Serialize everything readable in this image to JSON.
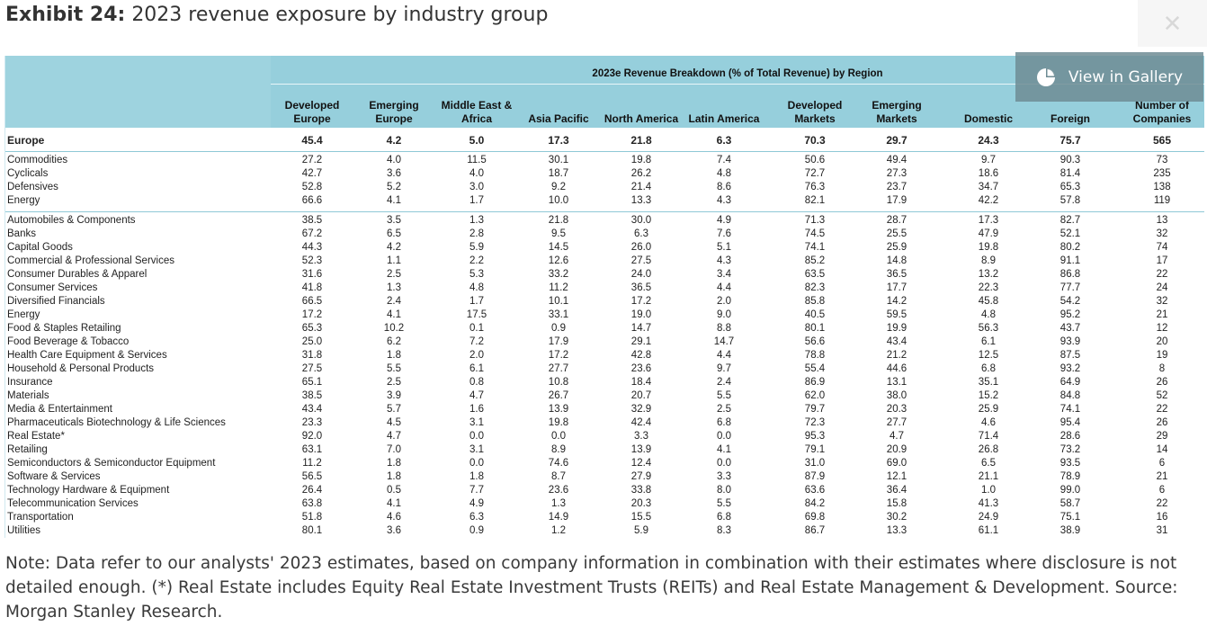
{
  "title": {
    "prefix": "Exhibit 24:",
    "text": "2023 revenue exposure by industry group"
  },
  "gallery_button": {
    "label": "View in Gallery"
  },
  "table": {
    "super_header": "2023e Revenue Breakdown (% of Total Revenue) by Region",
    "columns": [
      [
        "Developed",
        "Europe"
      ],
      [
        "Emerging",
        "Europe"
      ],
      [
        "Middle East &",
        "Africa"
      ],
      [
        "",
        "Asia Pacific"
      ],
      [
        "",
        "North America"
      ],
      [
        "",
        "Latin America"
      ],
      [
        "Developed",
        "Markets"
      ],
      [
        "Emerging",
        "Markets"
      ],
      [
        "",
        "Domestic"
      ],
      [
        "",
        "Foreign"
      ],
      [
        "Number of",
        "Companies"
      ]
    ],
    "summary_row": {
      "label": "Europe",
      "values": [
        "45.4",
        "4.2",
        "5.0",
        "17.3",
        "21.8",
        "6.3",
        "70.3",
        "29.7",
        "24.3",
        "75.7",
        "565"
      ]
    },
    "sector_rows": [
      {
        "label": "Commodities",
        "values": [
          "27.2",
          "4.0",
          "11.5",
          "30.1",
          "19.8",
          "7.4",
          "50.6",
          "49.4",
          "9.7",
          "90.3",
          "73"
        ]
      },
      {
        "label": "Cyclicals",
        "values": [
          "42.7",
          "3.6",
          "4.0",
          "18.7",
          "26.2",
          "4.8",
          "72.7",
          "27.3",
          "18.6",
          "81.4",
          "235"
        ]
      },
      {
        "label": "Defensives",
        "values": [
          "52.8",
          "5.2",
          "3.0",
          "9.2",
          "21.4",
          "8.6",
          "76.3",
          "23.7",
          "34.7",
          "65.3",
          "138"
        ]
      },
      {
        "label": "Energy",
        "values": [
          "66.6",
          "4.1",
          "1.7",
          "10.0",
          "13.3",
          "4.3",
          "82.1",
          "17.9",
          "42.2",
          "57.8",
          "119"
        ]
      }
    ],
    "industry_rows": [
      {
        "label": "Automobiles & Components",
        "values": [
          "38.5",
          "3.5",
          "1.3",
          "21.8",
          "30.0",
          "4.9",
          "71.3",
          "28.7",
          "17.3",
          "82.7",
          "13"
        ]
      },
      {
        "label": "Banks",
        "values": [
          "67.2",
          "6.5",
          "2.8",
          "9.5",
          "6.3",
          "7.6",
          "74.5",
          "25.5",
          "47.9",
          "52.1",
          "32"
        ]
      },
      {
        "label": "Capital Goods",
        "values": [
          "44.3",
          "4.2",
          "5.9",
          "14.5",
          "26.0",
          "5.1",
          "74.1",
          "25.9",
          "19.8",
          "80.2",
          "74"
        ]
      },
      {
        "label": "Commercial & Professional Services",
        "values": [
          "52.3",
          "1.1",
          "2.2",
          "12.6",
          "27.5",
          "4.3",
          "85.2",
          "14.8",
          "8.9",
          "91.1",
          "17"
        ]
      },
      {
        "label": "Consumer Durables & Apparel",
        "values": [
          "31.6",
          "2.5",
          "5.3",
          "33.2",
          "24.0",
          "3.4",
          "63.5",
          "36.5",
          "13.2",
          "86.8",
          "22"
        ]
      },
      {
        "label": "Consumer Services",
        "values": [
          "41.8",
          "1.3",
          "4.8",
          "11.2",
          "36.5",
          "4.4",
          "82.3",
          "17.7",
          "22.3",
          "77.7",
          "24"
        ]
      },
      {
        "label": "Diversified Financials",
        "values": [
          "66.5",
          "2.4",
          "1.7",
          "10.1",
          "17.2",
          "2.0",
          "85.8",
          "14.2",
          "45.8",
          "54.2",
          "32"
        ]
      },
      {
        "label": "Energy",
        "values": [
          "17.2",
          "4.1",
          "17.5",
          "33.1",
          "19.0",
          "9.0",
          "40.5",
          "59.5",
          "4.8",
          "95.2",
          "21"
        ]
      },
      {
        "label": "Food & Staples Retailing",
        "values": [
          "65.3",
          "10.2",
          "0.1",
          "0.9",
          "14.7",
          "8.8",
          "80.1",
          "19.9",
          "56.3",
          "43.7",
          "12"
        ]
      },
      {
        "label": "Food Beverage & Tobacco",
        "values": [
          "25.0",
          "6.2",
          "7.2",
          "17.9",
          "29.1",
          "14.7",
          "56.6",
          "43.4",
          "6.1",
          "93.9",
          "20"
        ]
      },
      {
        "label": "Health Care Equipment & Services",
        "values": [
          "31.8",
          "1.8",
          "2.0",
          "17.2",
          "42.8",
          "4.4",
          "78.8",
          "21.2",
          "12.5",
          "87.5",
          "19"
        ]
      },
      {
        "label": "Household & Personal Products",
        "values": [
          "27.5",
          "5.5",
          "6.1",
          "27.7",
          "23.6",
          "9.7",
          "55.4",
          "44.6",
          "6.8",
          "93.2",
          "8"
        ]
      },
      {
        "label": "Insurance",
        "values": [
          "65.1",
          "2.5",
          "0.8",
          "10.8",
          "18.4",
          "2.4",
          "86.9",
          "13.1",
          "35.1",
          "64.9",
          "26"
        ]
      },
      {
        "label": "Materials",
        "values": [
          "38.5",
          "3.9",
          "4.7",
          "26.7",
          "20.7",
          "5.5",
          "62.0",
          "38.0",
          "15.2",
          "84.8",
          "52"
        ]
      },
      {
        "label": "Media & Entertainment",
        "values": [
          "43.4",
          "5.7",
          "1.6",
          "13.9",
          "32.9",
          "2.5",
          "79.7",
          "20.3",
          "25.9",
          "74.1",
          "22"
        ]
      },
      {
        "label": "Pharmaceuticals Biotechnology & Life Sciences",
        "values": [
          "23.3",
          "4.5",
          "3.1",
          "19.8",
          "42.4",
          "6.8",
          "72.3",
          "27.7",
          "4.6",
          "95.4",
          "26"
        ]
      },
      {
        "label": "Real Estate*",
        "values": [
          "92.0",
          "4.7",
          "0.0",
          "0.0",
          "3.3",
          "0.0",
          "95.3",
          "4.7",
          "71.4",
          "28.6",
          "29"
        ]
      },
      {
        "label": "Retailing",
        "values": [
          "63.1",
          "7.0",
          "3.1",
          "8.9",
          "13.9",
          "4.1",
          "79.1",
          "20.9",
          "26.8",
          "73.2",
          "14"
        ]
      },
      {
        "label": "Semiconductors & Semiconductor Equipment",
        "values": [
          "11.2",
          "1.8",
          "0.0",
          "74.6",
          "12.4",
          "0.0",
          "31.0",
          "69.0",
          "6.5",
          "93.5",
          "6"
        ]
      },
      {
        "label": "Software & Services",
        "values": [
          "56.5",
          "1.8",
          "1.8",
          "8.7",
          "27.9",
          "3.3",
          "87.9",
          "12.1",
          "21.1",
          "78.9",
          "21"
        ]
      },
      {
        "label": "Technology Hardware & Equipment",
        "values": [
          "26.4",
          "0.5",
          "7.7",
          "23.6",
          "33.8",
          "8.0",
          "63.6",
          "36.4",
          "1.0",
          "99.0",
          "6"
        ]
      },
      {
        "label": "Telecommunication Services",
        "values": [
          "63.8",
          "4.1",
          "4.9",
          "1.3",
          "20.3",
          "5.5",
          "84.2",
          "15.8",
          "41.3",
          "58.7",
          "22"
        ]
      },
      {
        "label": "Transportation",
        "values": [
          "51.8",
          "4.6",
          "6.3",
          "14.9",
          "15.5",
          "6.8",
          "69.8",
          "30.2",
          "24.9",
          "75.1",
          "16"
        ]
      },
      {
        "label": "Utilities",
        "values": [
          "80.1",
          "3.6",
          "0.9",
          "1.2",
          "5.9",
          "8.3",
          "86.7",
          "13.3",
          "61.1",
          "38.9",
          "31"
        ]
      }
    ]
  },
  "note": "Note: Data refer to our analysts' 2023 estimates, based on company information in combination with their estimates where disclosure is not detailed enough. (*) Real Estate includes Equity Real Estate Investment Trusts (REITs) and Real Estate Management & Development. Source: Morgan Stanley Research."
}
